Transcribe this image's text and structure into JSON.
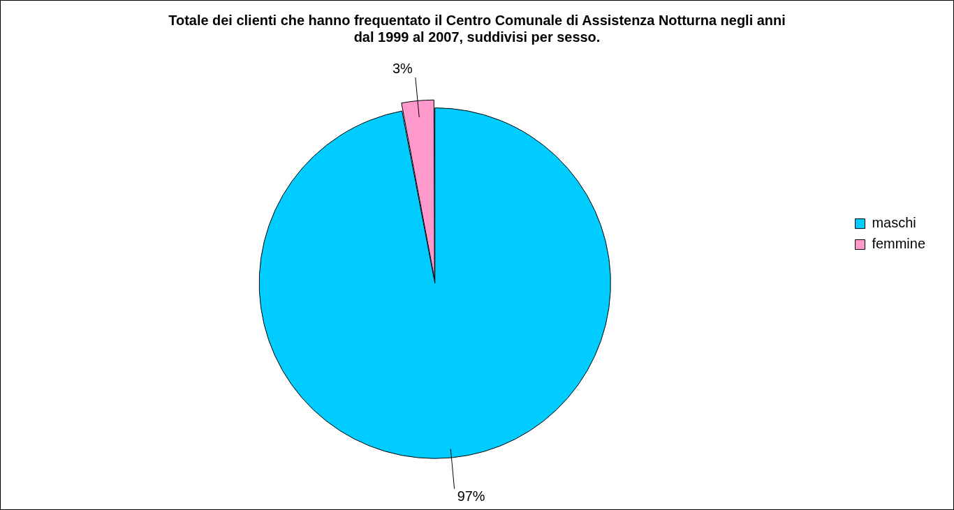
{
  "chart_data": {
    "type": "pie",
    "title": "Totale dei clienti che hanno frequentato il Centro Comunale di Assistenza Notturna negli anni dal 1999 al 2007, suddivisi per sesso.",
    "categories": [
      "maschi",
      "femmine"
    ],
    "values": [
      97,
      3
    ],
    "colors": [
      "#00ccff",
      "#ff99cc"
    ],
    "value_labels": [
      "97%",
      "3%"
    ],
    "legend": "right"
  }
}
